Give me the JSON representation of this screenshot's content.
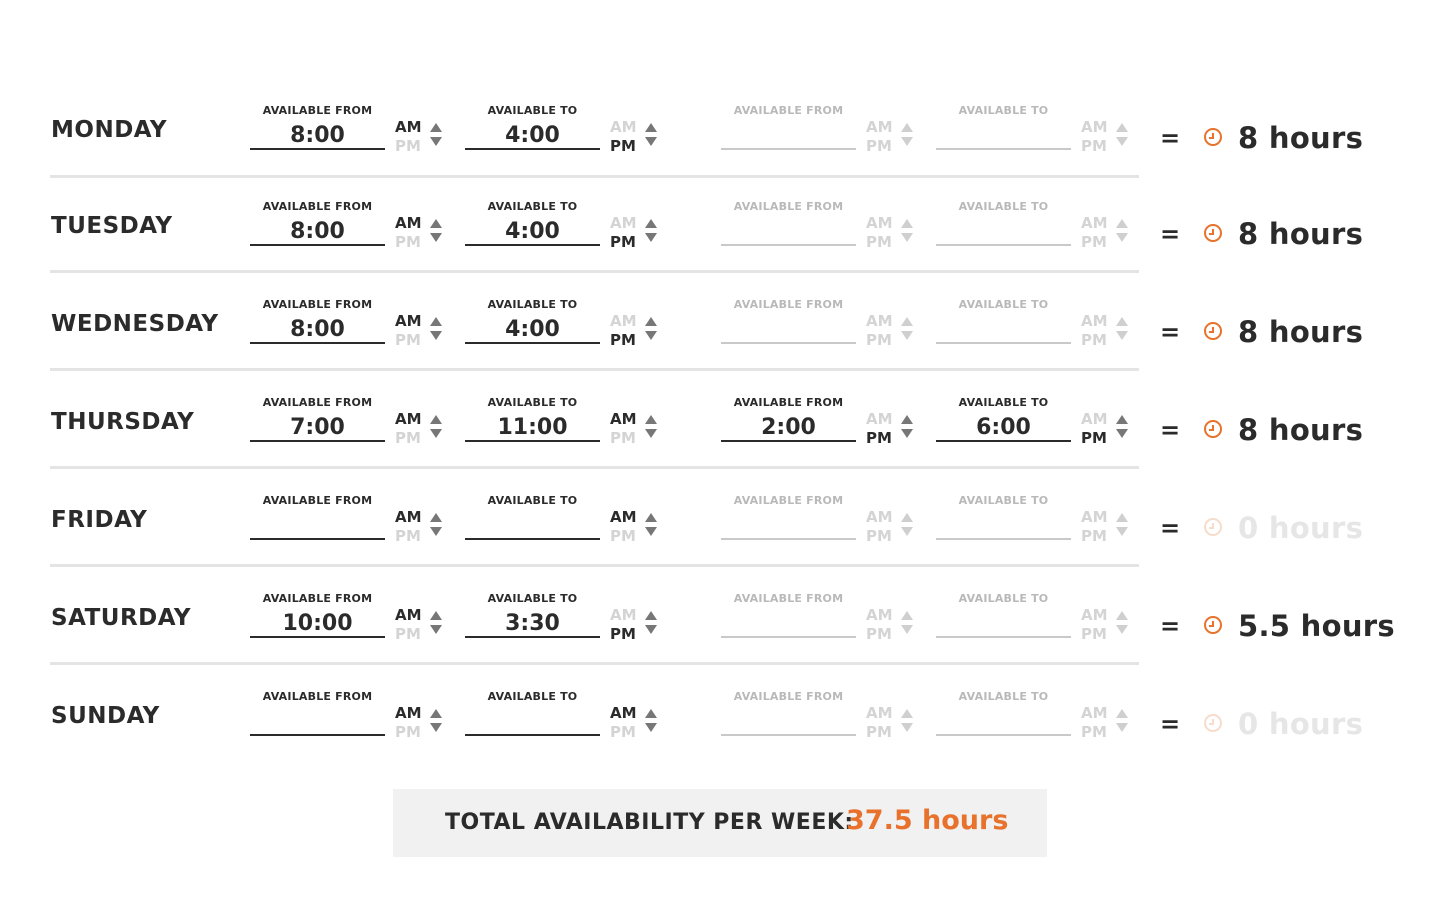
{
  "colors": {
    "accent": "#e8722c",
    "text": "#2b2b2b",
    "muted": "#c9c9c9"
  },
  "schedule": [
    {
      "day": "MONDAY",
      "slots": [
        {
          "label": "AVAILABLE FROM",
          "value": "8:00",
          "am": "AM",
          "pm": "PM",
          "meridiem": "AM",
          "enabled": true
        },
        {
          "label": "AVAILABLE TO",
          "value": "4:00",
          "am": "AM",
          "pm": "PM",
          "meridiem": "PM",
          "enabled": true
        },
        {
          "label": "AVAILABLE FROM",
          "value": "",
          "am": "AM",
          "pm": "PM",
          "meridiem": "AM",
          "enabled": false
        },
        {
          "label": "AVAILABLE TO",
          "value": "",
          "am": "AM",
          "pm": "PM",
          "meridiem": "AM",
          "enabled": false
        }
      ],
      "equals": "=",
      "hours": "8 hours",
      "active": true
    },
    {
      "day": "TUESDAY",
      "slots": [
        {
          "label": "AVAILABLE FROM",
          "value": "8:00",
          "am": "AM",
          "pm": "PM",
          "meridiem": "AM",
          "enabled": true
        },
        {
          "label": "AVAILABLE TO",
          "value": "4:00",
          "am": "AM",
          "pm": "PM",
          "meridiem": "PM",
          "enabled": true
        },
        {
          "label": "AVAILABLE FROM",
          "value": "",
          "am": "AM",
          "pm": "PM",
          "meridiem": "AM",
          "enabled": false
        },
        {
          "label": "AVAILABLE TO",
          "value": "",
          "am": "AM",
          "pm": "PM",
          "meridiem": "AM",
          "enabled": false
        }
      ],
      "equals": "=",
      "hours": "8 hours",
      "active": true
    },
    {
      "day": "WEDNESDAY",
      "slots": [
        {
          "label": "AVAILABLE FROM",
          "value": "8:00",
          "am": "AM",
          "pm": "PM",
          "meridiem": "AM",
          "enabled": true
        },
        {
          "label": "AVAILABLE TO",
          "value": "4:00",
          "am": "AM",
          "pm": "PM",
          "meridiem": "PM",
          "enabled": true
        },
        {
          "label": "AVAILABLE FROM",
          "value": "",
          "am": "AM",
          "pm": "PM",
          "meridiem": "AM",
          "enabled": false
        },
        {
          "label": "AVAILABLE TO",
          "value": "",
          "am": "AM",
          "pm": "PM",
          "meridiem": "AM",
          "enabled": false
        }
      ],
      "equals": "=",
      "hours": "8 hours",
      "active": true
    },
    {
      "day": "THURSDAY",
      "slots": [
        {
          "label": "AVAILABLE FROM",
          "value": "7:00",
          "am": "AM",
          "pm": "PM",
          "meridiem": "AM",
          "enabled": true
        },
        {
          "label": "AVAILABLE TO",
          "value": "11:00",
          "am": "AM",
          "pm": "PM",
          "meridiem": "AM",
          "enabled": true
        },
        {
          "label": "AVAILABLE FROM",
          "value": "2:00",
          "am": "AM",
          "pm": "PM",
          "meridiem": "PM",
          "enabled": true
        },
        {
          "label": "AVAILABLE TO",
          "value": "6:00",
          "am": "AM",
          "pm": "PM",
          "meridiem": "PM",
          "enabled": true
        }
      ],
      "equals": "=",
      "hours": "8 hours",
      "active": true
    },
    {
      "day": "FRIDAY",
      "slots": [
        {
          "label": "AVAILABLE FROM",
          "value": "",
          "am": "AM",
          "pm": "PM",
          "meridiem": "AM",
          "enabled": true
        },
        {
          "label": "AVAILABLE TO",
          "value": "",
          "am": "AM",
          "pm": "PM",
          "meridiem": "AM",
          "enabled": true
        },
        {
          "label": "AVAILABLE FROM",
          "value": "",
          "am": "AM",
          "pm": "PM",
          "meridiem": "AM",
          "enabled": false
        },
        {
          "label": "AVAILABLE TO",
          "value": "",
          "am": "AM",
          "pm": "PM",
          "meridiem": "AM",
          "enabled": false
        }
      ],
      "equals": "=",
      "hours": "0 hours",
      "active": false
    },
    {
      "day": "SATURDAY",
      "slots": [
        {
          "label": "AVAILABLE FROM",
          "value": "10:00",
          "am": "AM",
          "pm": "PM",
          "meridiem": "AM",
          "enabled": true
        },
        {
          "label": "AVAILABLE TO",
          "value": "3:30",
          "am": "AM",
          "pm": "PM",
          "meridiem": "PM",
          "enabled": true
        },
        {
          "label": "AVAILABLE FROM",
          "value": "",
          "am": "AM",
          "pm": "PM",
          "meridiem": "AM",
          "enabled": false
        },
        {
          "label": "AVAILABLE TO",
          "value": "",
          "am": "AM",
          "pm": "PM",
          "meridiem": "AM",
          "enabled": false
        }
      ],
      "equals": "=",
      "hours": "5.5 hours",
      "active": true
    },
    {
      "day": "SUNDAY",
      "slots": [
        {
          "label": "AVAILABLE FROM",
          "value": "",
          "am": "AM",
          "pm": "PM",
          "meridiem": "AM",
          "enabled": true
        },
        {
          "label": "AVAILABLE TO",
          "value": "",
          "am": "AM",
          "pm": "PM",
          "meridiem": "AM",
          "enabled": true
        },
        {
          "label": "AVAILABLE FROM",
          "value": "",
          "am": "AM",
          "pm": "PM",
          "meridiem": "AM",
          "enabled": false
        },
        {
          "label": "AVAILABLE TO",
          "value": "",
          "am": "AM",
          "pm": "PM",
          "meridiem": "AM",
          "enabled": false
        }
      ],
      "equals": "=",
      "hours": "0 hours",
      "active": false
    }
  ],
  "total": {
    "label": "TOTAL AVAILABILITY PER WEEK:",
    "value": "37.5 hours"
  },
  "icons": {
    "hours_icon": "clock-icon",
    "meridiem_stepper_icons": [
      "arrow-up-icon",
      "arrow-down-icon"
    ]
  }
}
